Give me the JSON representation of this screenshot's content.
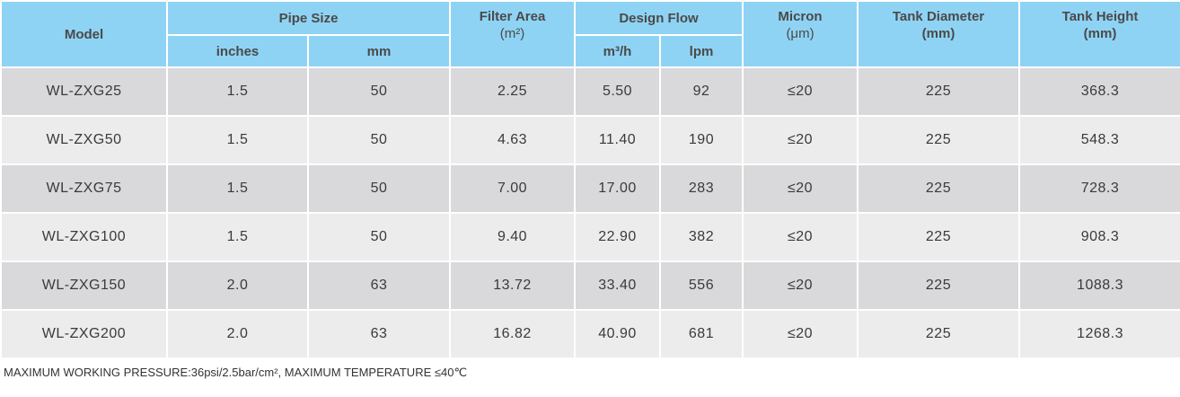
{
  "headers": {
    "model": "Model",
    "pipe_size": "Pipe Size",
    "inches": "inches",
    "mm": "mm",
    "filter_area": "Filter Area",
    "filter_area_unit": "(m²)",
    "design_flow": "Design Flow",
    "m3h": "m³/h",
    "lpm": "lpm",
    "micron": "Micron",
    "micron_unit": "(μm)",
    "tank_diameter": "Tank Diameter",
    "tank_diameter_unit": "(mm)",
    "tank_height": "Tank Height",
    "tank_height_unit": "(mm)"
  },
  "rows": [
    {
      "model": "WL-ZXG25",
      "inches": "1.5",
      "mm": "50",
      "area": "2.25",
      "m3h": "5.50",
      "lpm": "92",
      "micron": "≤20",
      "diameter": "225",
      "height": "368.3"
    },
    {
      "model": "WL-ZXG50",
      "inches": "1.5",
      "mm": "50",
      "area": "4.63",
      "m3h": "11.40",
      "lpm": "190",
      "micron": "≤20",
      "diameter": "225",
      "height": "548.3"
    },
    {
      "model": "WL-ZXG75",
      "inches": "1.5",
      "mm": "50",
      "area": "7.00",
      "m3h": "17.00",
      "lpm": "283",
      "micron": "≤20",
      "diameter": "225",
      "height": "728.3"
    },
    {
      "model": "WL-ZXG100",
      "inches": "1.5",
      "mm": "50",
      "area": "9.40",
      "m3h": "22.90",
      "lpm": "382",
      "micron": "≤20",
      "diameter": "225",
      "height": "908.3"
    },
    {
      "model": "WL-ZXG150",
      "inches": "2.0",
      "mm": "63",
      "area": "13.72",
      "m3h": "33.40",
      "lpm": "556",
      "micron": "≤20",
      "diameter": "225",
      "height": "1088.3"
    },
    {
      "model": "WL-ZXG200",
      "inches": "2.0",
      "mm": "63",
      "area": "16.82",
      "m3h": "40.90",
      "lpm": "681",
      "micron": "≤20",
      "diameter": "225",
      "height": "1268.3"
    }
  ],
  "footnote": "MAXIMUM WORKING PRESSURE:36psi/2.5bar/cm², MAXIMUM TEMPERATURE ≤40℃",
  "colors": {
    "header_bg": "#8fd3f4",
    "row_dark": "#d9d9db",
    "row_light": "#ececed"
  }
}
